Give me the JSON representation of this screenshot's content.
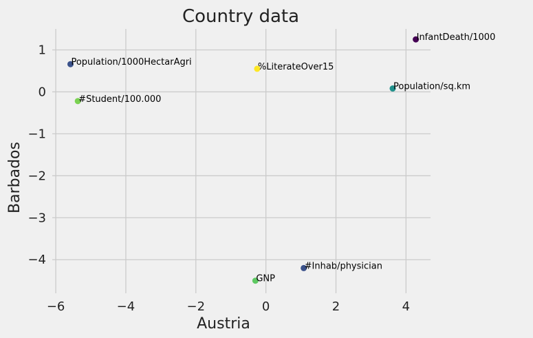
{
  "chart_data": {
    "type": "scatter",
    "title": "Country data",
    "xlabel": "Austria",
    "ylabel": "Barbados",
    "xlim": [
      -6.1,
      4.7
    ],
    "ylim": [
      -4.8,
      1.5
    ],
    "xticks": [
      -6,
      -4,
      -2,
      0,
      2,
      4
    ],
    "xtick_labels": [
      "−6",
      "−4",
      "−2",
      "0",
      "2",
      "4"
    ],
    "yticks": [
      1,
      0,
      -1,
      -2,
      -3,
      -4
    ],
    "ytick_labels": [
      "1",
      "0",
      "−1",
      "−2",
      "−3",
      "−4"
    ],
    "grid": true,
    "points": [
      {
        "label": "InfantDeath/1000",
        "x": 4.28,
        "y": 1.25,
        "color": "#440154"
      },
      {
        "label": "Population/1000HectarAgri",
        "x": -5.58,
        "y": 0.66,
        "color": "#3b528b"
      },
      {
        "label": "%LiterateOver15",
        "x": -0.25,
        "y": 0.55,
        "color": "#fde725"
      },
      {
        "label": "Population/sq.km",
        "x": 3.62,
        "y": 0.08,
        "color": "#21918c"
      },
      {
        "label": "#Student/100.000",
        "x": -5.37,
        "y": -0.22,
        "color": "#7ad151"
      },
      {
        "label": "#Inhab/physician",
        "x": 1.08,
        "y": -4.2,
        "color": "#3b528b"
      },
      {
        "label": "GNP",
        "x": -0.3,
        "y": -4.5,
        "color": "#5ec962"
      }
    ]
  }
}
